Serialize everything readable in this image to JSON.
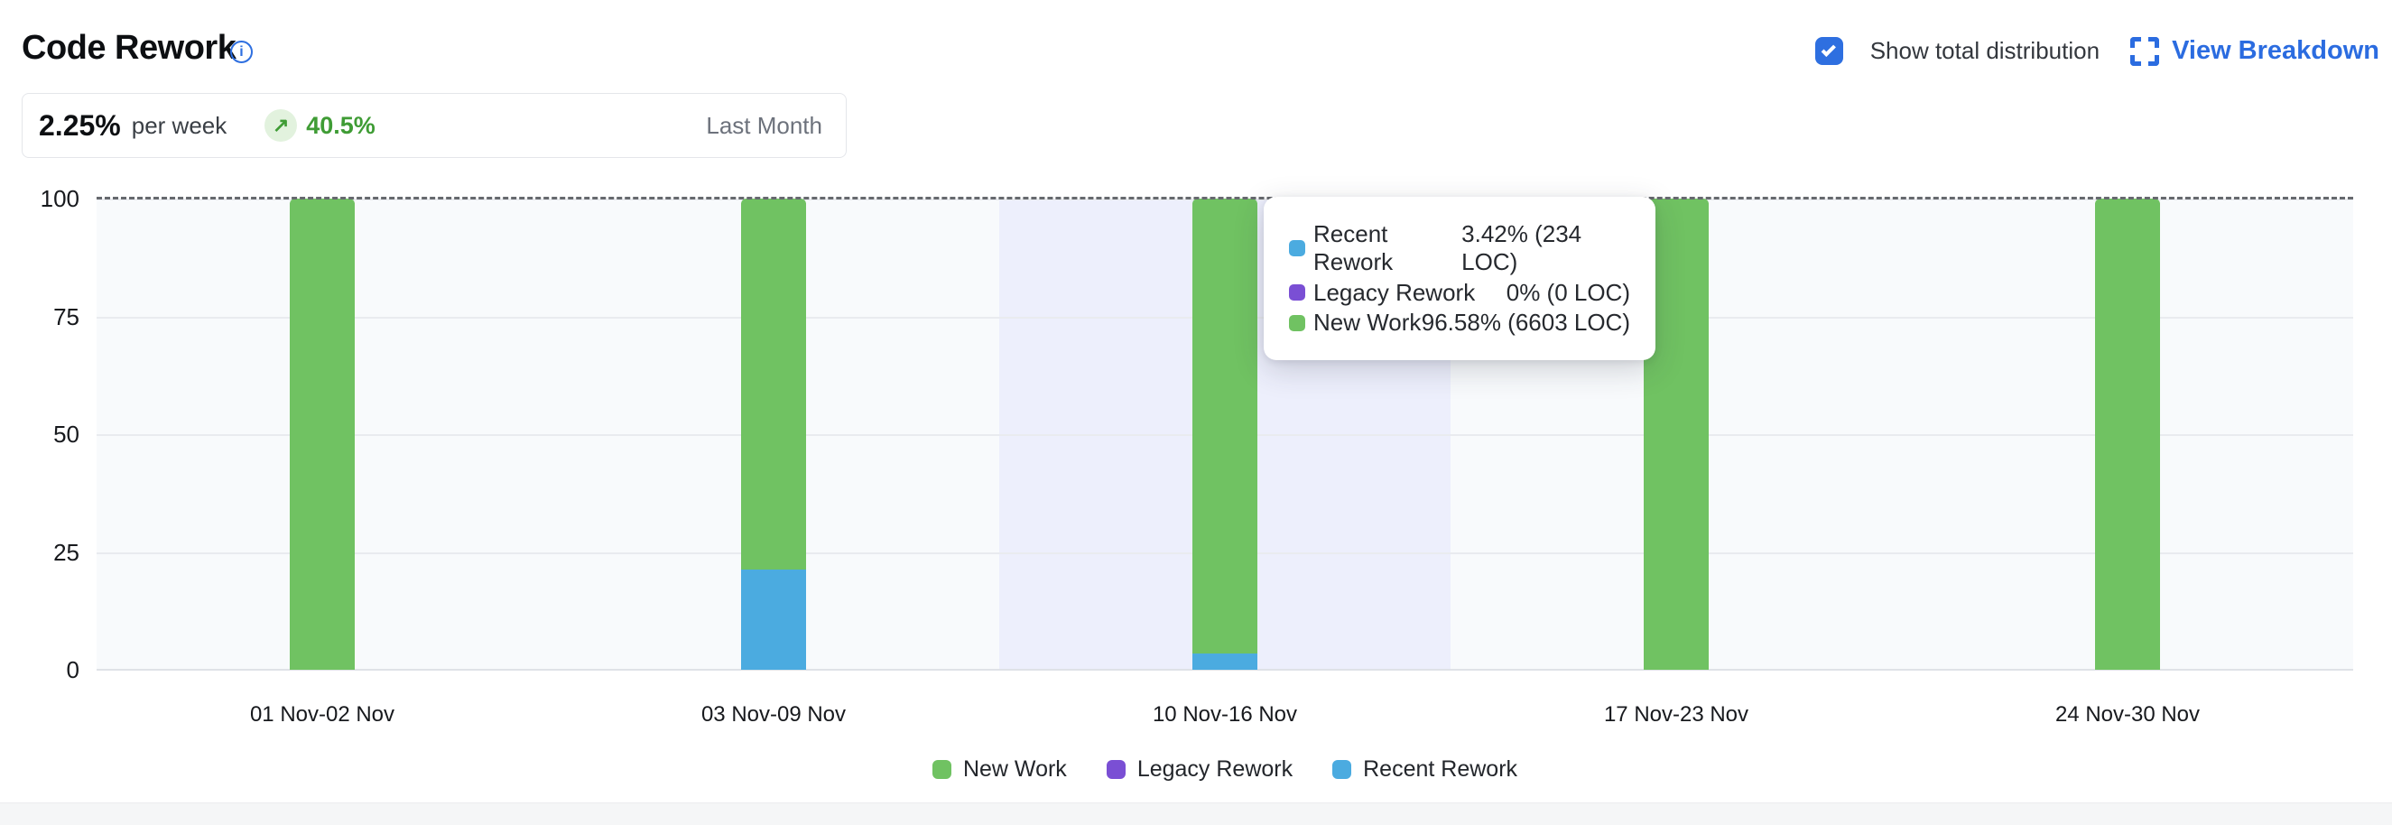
{
  "header": {
    "title": "Code Rework",
    "show_total_label": "Show total distribution",
    "show_total_checked": true,
    "view_breakdown_label": "View Breakdown"
  },
  "stat": {
    "value": "2.25%",
    "unit": "per week",
    "trend_arrow": "↗",
    "delta": "40.5%",
    "period": "Last Month"
  },
  "tooltip": {
    "rows": [
      {
        "label": "Recent Rework",
        "value": "3.42% (234 LOC)",
        "color": "#4babe0"
      },
      {
        "label": "Legacy Rework",
        "value": "0% (0 LOC)",
        "color": "#7a4fd4"
      },
      {
        "label": "New Work",
        "value": "96.58% (6603 LOC)",
        "color": "#70c262"
      }
    ]
  },
  "chart_data": {
    "type": "bar",
    "stacked": true,
    "title": "Code Rework",
    "categories": [
      "01 Nov-02 Nov",
      "03 Nov-09 Nov",
      "10 Nov-16 Nov",
      "17 Nov-23 Nov",
      "24 Nov-30 Nov"
    ],
    "series": [
      {
        "name": "New Work",
        "color": "#70c262",
        "values": [
          100,
          78.7,
          96.58,
          100,
          100
        ]
      },
      {
        "name": "Legacy Rework",
        "color": "#7a4fd4",
        "values": [
          0,
          0,
          0,
          0,
          0
        ]
      },
      {
        "name": "Recent Rework",
        "color": "#4babe0",
        "values": [
          0,
          21.3,
          3.42,
          0,
          0
        ]
      }
    ],
    "stack_bottom_to_top": [
      "Recent Rework",
      "Legacy Rework",
      "New Work"
    ],
    "xlabel": "",
    "ylabel": "",
    "ylim": [
      0,
      100
    ],
    "yticks": [
      0,
      25,
      50,
      75,
      100
    ],
    "grid": true,
    "dashed_line_at": 100,
    "highlighted_category": "10 Nov-16 Nov",
    "legend_position": "bottom",
    "legend": [
      "New Work",
      "Legacy Rework",
      "Recent Rework"
    ],
    "plot_bg": "#f8fafc",
    "highlight_bg": "#edeffc"
  }
}
